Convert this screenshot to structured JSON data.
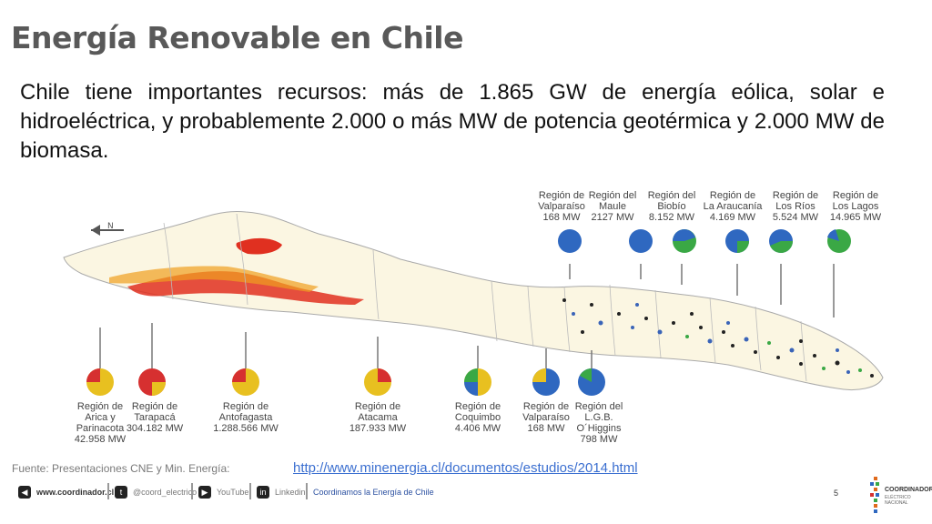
{
  "title": "Energía Renovable en Chile",
  "body": "Chile tiene importantes recursos: más de 1.865 GW de energía eólica, solar e hidroeléctrica, y probablemente 2.000 o más MW de potencia geotérmica y 2.000 MW de biomasa.",
  "colors": {
    "solar": "#e8c020",
    "solar_red": "#d63030",
    "wind": "#3a64b8",
    "hydro": "#2f68c0",
    "green": "#3aa845"
  },
  "regions_top": [
    {
      "label": "Región de\nValparaíso",
      "value": "168 MW"
    },
    {
      "label": "Región del\nMaule",
      "value": "2127 MW"
    },
    {
      "label": "Región del\nBiobío",
      "value": "8.152 MW"
    },
    {
      "label": "Región de\nLa Araucanía",
      "value": "4.169 MW"
    },
    {
      "label": "Región de\nLos Ríos",
      "value": "5.524 MW"
    },
    {
      "label": "Región de\nLos Lagos",
      "value": "14.965 MW"
    }
  ],
  "regions_bottom": [
    {
      "label": "Región de\nArica y\nParinacota",
      "value": "42.958 MW"
    },
    {
      "label": "Región de\nTarapacá",
      "value": "304.182 MW"
    },
    {
      "label": "Región de\nAntofagasta",
      "value": "1.288.566 MW"
    },
    {
      "label": "Región de\nAtacama",
      "value": "187.933 MW"
    },
    {
      "label": "Región de\nCoquimbo",
      "value": "4.406 MW"
    },
    {
      "label": "Región de\nValparaíso",
      "value": "168 MW"
    },
    {
      "label": "Región del\nL.G.B.\nO´Higgins",
      "value": "798 MW"
    }
  ],
  "source": "Fuente: Presentaciones CNE y Min. Energía:",
  "link": "http://www.minenergia.cl/documentos/estudios/2014.html",
  "footer": {
    "website": "www.coordinador.cl",
    "twitter": "@coord_electrico",
    "youtube": "YouTube",
    "linkedin": "Linkedin",
    "slogan": "Coordinamos la Energía de Chile",
    "page": "5"
  },
  "logo": {
    "name": "COORDINADOR",
    "sub": "ELÉCTRICO NACIONAL"
  }
}
